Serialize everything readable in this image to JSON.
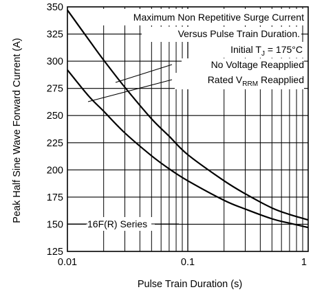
{
  "chart_data": {
    "type": "line",
    "xscale": "log",
    "xlim": [
      0.01,
      1
    ],
    "ylim": [
      125,
      350
    ],
    "xlabel": "Pulse Train Duration (s)",
    "ylabel": "Peak Half Sine Wave Forward Current (A)",
    "x_ticks": [
      "0.01",
      "0.1",
      "1"
    ],
    "y_ticks": [
      "125",
      "150",
      "175",
      "200",
      "225",
      "250",
      "275",
      "300",
      "325",
      "350"
    ],
    "grid": true,
    "annotations": {
      "line1": "Maximum Non Repetitive Surge Current",
      "line2": "Versus Pulse Train Duration.",
      "line3_pre": "Initial T",
      "line3_sub": "J",
      "line3_post": " = 175°C",
      "line4": "No Voltage Reapplied",
      "line5_pre": "Rated V",
      "line5_sub": "RRM",
      "line5_post": " Reapplied",
      "series_label": "16F(R) Series"
    },
    "series": [
      {
        "name": "No Voltage Reapplied",
        "x": [
          0.01,
          0.015,
          0.02,
          0.03,
          0.05,
          0.07,
          0.1,
          0.2,
          0.3,
          0.5,
          0.7,
          1.0
        ],
        "y": [
          347,
          320,
          301,
          276,
          247,
          231,
          214,
          190,
          178,
          165,
          159,
          154
        ]
      },
      {
        "name": "Rated VRRM Reapplied",
        "x": [
          0.01,
          0.015,
          0.02,
          0.03,
          0.05,
          0.07,
          0.1,
          0.2,
          0.3,
          0.5,
          0.7,
          1.0
        ],
        "y": [
          292,
          268,
          254,
          234,
          213,
          201,
          190,
          172,
          164,
          155,
          151,
          147
        ]
      }
    ]
  }
}
